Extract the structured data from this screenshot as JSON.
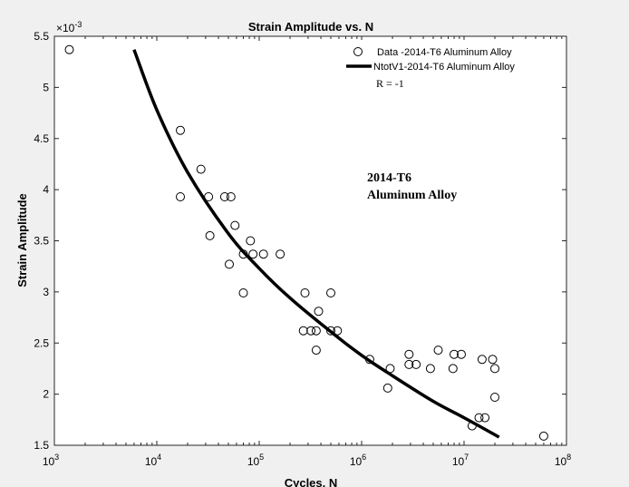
{
  "chart_data": {
    "type": "scatter",
    "title": "Strain Amplitude vs. N",
    "xlabel": "Cycles, N",
    "ylabel": "Strain Amplitude",
    "x_scale": "log",
    "xlim": [
      1000,
      100000000
    ],
    "ylim": [
      1.5,
      5.5
    ],
    "y_multiplier": "×10",
    "y_multiplier_exp": "-3",
    "x_ticks": [
      {
        "base": "10",
        "exp": "3",
        "value": 1000
      },
      {
        "base": "10",
        "exp": "4",
        "value": 10000
      },
      {
        "base": "10",
        "exp": "5",
        "value": 100000
      },
      {
        "base": "10",
        "exp": "6",
        "value": 1000000
      },
      {
        "base": "10",
        "exp": "7",
        "value": 10000000
      },
      {
        "base": "10",
        "exp": "8",
        "value": 100000000
      }
    ],
    "y_ticks": [
      "1.5",
      "2",
      "2.5",
      "3",
      "3.5",
      "4",
      "4.5",
      "5",
      "5.5"
    ],
    "grid": false,
    "legend_position": "top-right",
    "legend": [
      {
        "label": "Data -2014-T6 Aluminum Alloy",
        "marker": "circle"
      },
      {
        "label": "NtotV1-2014-T6 Aluminum Alloy",
        "marker": "thick-line"
      }
    ],
    "legend_note": "R = -1",
    "annotation": [
      "2014-T6",
      "Aluminum Alloy"
    ],
    "series": [
      {
        "name": "Data -2014-T6 Aluminum Alloy",
        "type": "scatter",
        "points": [
          [
            1400,
            5.37
          ],
          [
            17000,
            4.58
          ],
          [
            17000,
            3.93
          ],
          [
            27000,
            4.2
          ],
          [
            32000,
            3.93
          ],
          [
            33000,
            3.55
          ],
          [
            46000,
            3.93
          ],
          [
            51000,
            3.27
          ],
          [
            53000,
            3.93
          ],
          [
            58000,
            3.65
          ],
          [
            70000,
            2.99
          ],
          [
            70000,
            3.37
          ],
          [
            82000,
            3.5
          ],
          [
            87000,
            3.37
          ],
          [
            110000,
            3.37
          ],
          [
            160000,
            3.37
          ],
          [
            270000,
            2.62
          ],
          [
            280000,
            2.99
          ],
          [
            320000,
            2.62
          ],
          [
            360000,
            2.43
          ],
          [
            360000,
            2.62
          ],
          [
            380000,
            2.81
          ],
          [
            500000,
            2.99
          ],
          [
            500000,
            2.62
          ],
          [
            580000,
            2.62
          ],
          [
            1200000,
            2.34
          ],
          [
            1800000,
            2.06
          ],
          [
            1900000,
            2.25
          ],
          [
            2900000,
            2.29
          ],
          [
            2900000,
            2.39
          ],
          [
            3400000,
            2.29
          ],
          [
            4700000,
            2.25
          ],
          [
            5600000,
            2.43
          ],
          [
            7800000,
            2.25
          ],
          [
            8000000,
            2.39
          ],
          [
            9400000,
            2.39
          ],
          [
            12000000,
            1.69
          ],
          [
            14000000,
            1.77
          ],
          [
            15000000,
            2.34
          ],
          [
            16000000,
            1.77
          ],
          [
            19000000,
            2.34
          ],
          [
            20000000,
            2.25
          ],
          [
            20000000,
            1.97
          ],
          [
            60000000,
            1.59
          ]
        ]
      },
      {
        "name": "NtotV1-2014-T6 Aluminum Alloy",
        "type": "line",
        "points": [
          [
            6000,
            5.37
          ],
          [
            10000,
            4.78
          ],
          [
            20000,
            4.17
          ],
          [
            50000,
            3.57
          ],
          [
            100000,
            3.23
          ],
          [
            200000,
            2.94
          ],
          [
            500000,
            2.61
          ],
          [
            1000000,
            2.38
          ],
          [
            2000000,
            2.18
          ],
          [
            5000000,
            1.93
          ],
          [
            10000000,
            1.77
          ],
          [
            22000000,
            1.58
          ]
        ]
      }
    ]
  }
}
